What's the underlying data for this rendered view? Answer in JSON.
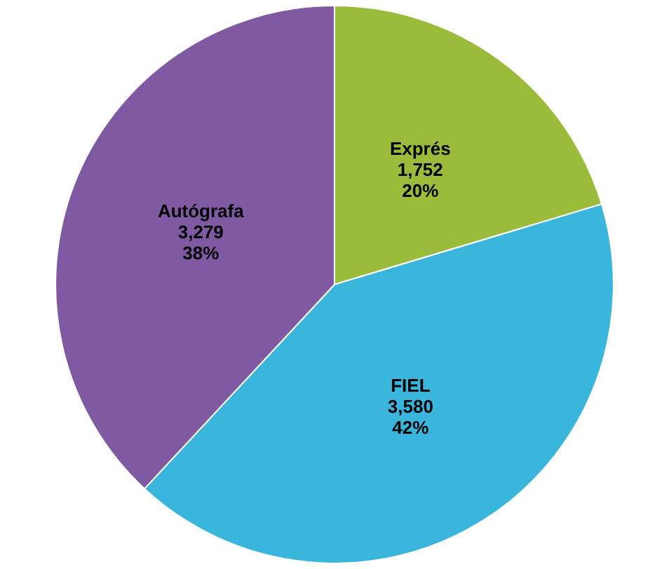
{
  "chart_data": {
    "type": "pie",
    "categories": [
      "Exprés",
      "FIEL",
      "Autógrafa"
    ],
    "values": [
      1752,
      3580,
      3279
    ],
    "value_labels": [
      "1,752\n20%",
      "3,580\n42%",
      "3,279\n38%"
    ],
    "colors": [
      "#9bbb3b",
      "#3ab5dc",
      "#7f5aa2"
    ]
  }
}
